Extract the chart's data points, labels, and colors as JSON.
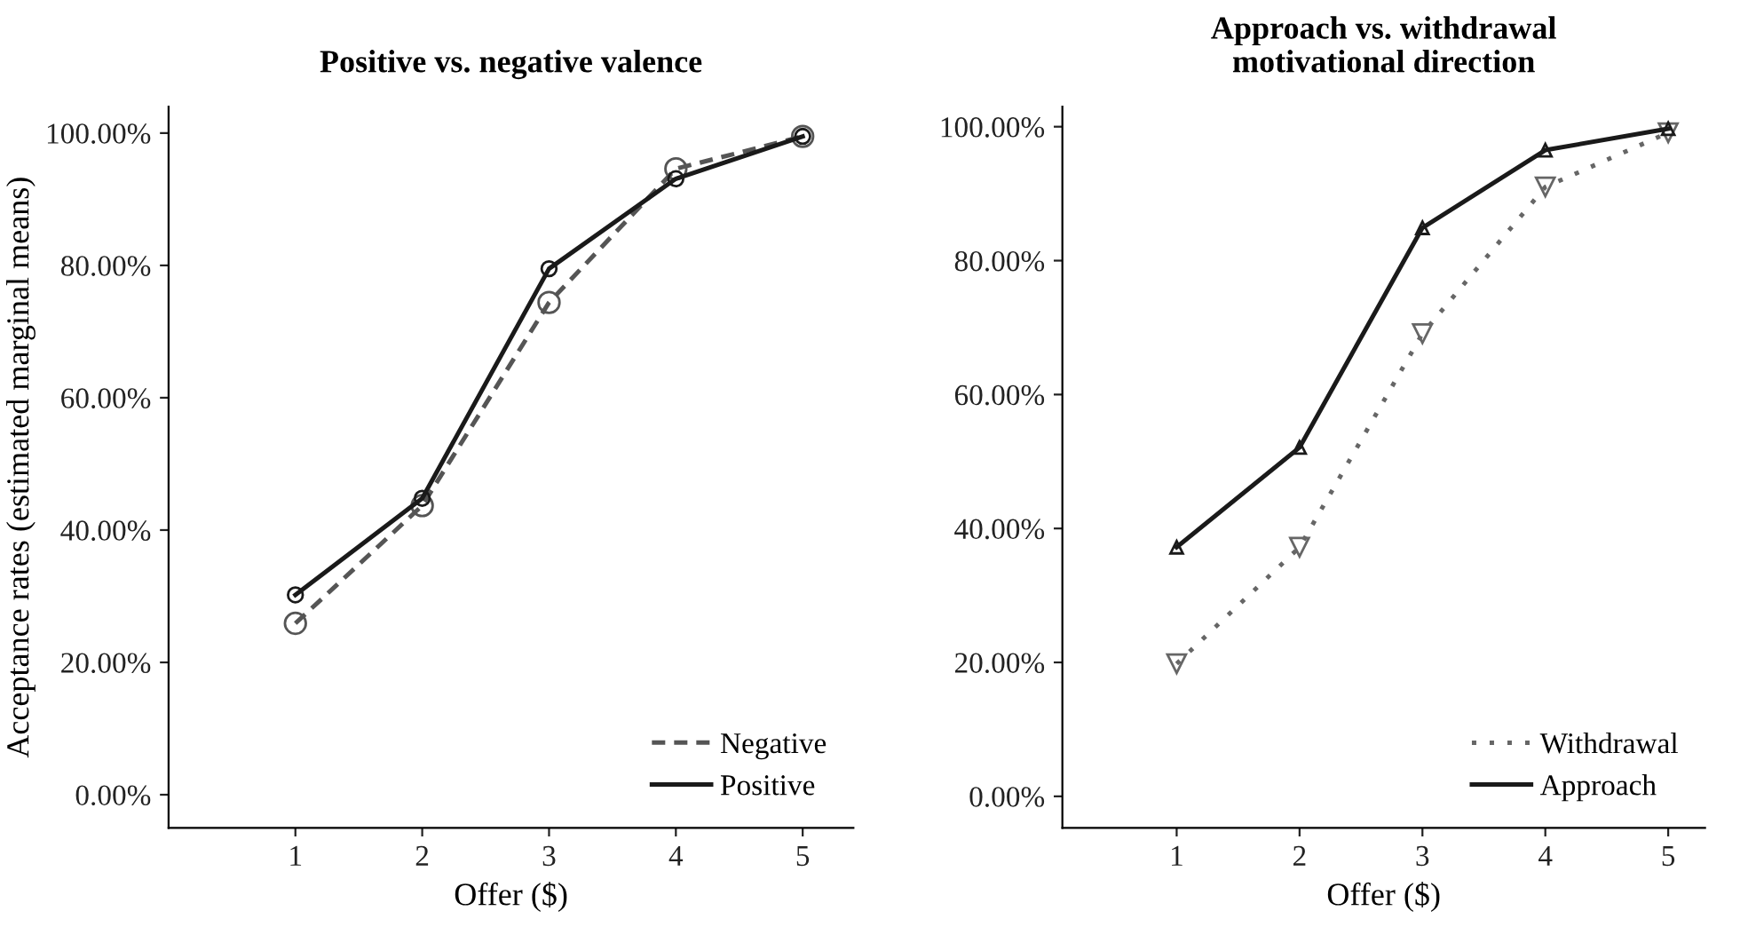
{
  "chart_data": [
    {
      "type": "line",
      "title": "Positive vs. negative valence",
      "xlabel": "Offer ($)",
      "ylabel": "Acceptance rates (estimated marginal means)",
      "x": [
        1,
        2,
        3,
        4,
        5
      ],
      "xlim": [
        0,
        5.4
      ],
      "xticks": [
        1,
        2,
        3,
        4,
        5
      ],
      "ylim": [
        -5,
        104
      ],
      "yticks": [
        {
          "value": 0,
          "label": "0.00%"
        },
        {
          "value": 20,
          "label": "20.00%"
        },
        {
          "value": 40,
          "label": "40.00%"
        },
        {
          "value": 60,
          "label": "60.00%"
        },
        {
          "value": 80,
          "label": "80.00%"
        },
        {
          "value": 100,
          "label": "100.00%"
        }
      ],
      "grid": false,
      "legend": "bottom right",
      "series": [
        {
          "name": "Negative",
          "color": "#555555",
          "line_style": "dashed",
          "marker": "circle",
          "values": [
            25.9,
            43.7,
            74.4,
            94.6,
            99.5
          ]
        },
        {
          "name": "Positive",
          "color": "#1a1a1a",
          "line_style": "solid",
          "marker": "circle",
          "values": [
            30.2,
            44.8,
            79.5,
            93.1,
            99.5
          ]
        }
      ]
    },
    {
      "type": "line",
      "title": "Approach vs. withdrawal\nmotivational direction",
      "xlabel": "Offer ($)",
      "x": [
        1,
        2,
        3,
        4,
        5
      ],
      "xlim": [
        0.07,
        5.3
      ],
      "xticks": [
        1,
        2,
        3,
        4,
        5
      ],
      "ylim": [
        -4.7,
        103
      ],
      "yticks": [
        {
          "value": 0,
          "label": "0.00%"
        },
        {
          "value": 20,
          "label": "20.00%"
        },
        {
          "value": 40,
          "label": "40.00%"
        },
        {
          "value": 60,
          "label": "60.00%"
        },
        {
          "value": 80,
          "label": "80.00%"
        },
        {
          "value": 100,
          "label": "100.00%"
        }
      ],
      "grid": false,
      "legend": "bottom right",
      "series": [
        {
          "name": "Withdrawal",
          "color": "#666666",
          "line_style": "dotted",
          "marker": "triangle_down",
          "values": [
            19.8,
            37.2,
            69.1,
            91.0,
            99.1
          ]
        },
        {
          "name": "Approach",
          "color": "#1a1a1a",
          "line_style": "solid",
          "marker": "triangle",
          "values": [
            37.2,
            52.1,
            84.9,
            96.5,
            99.7
          ]
        }
      ]
    }
  ]
}
